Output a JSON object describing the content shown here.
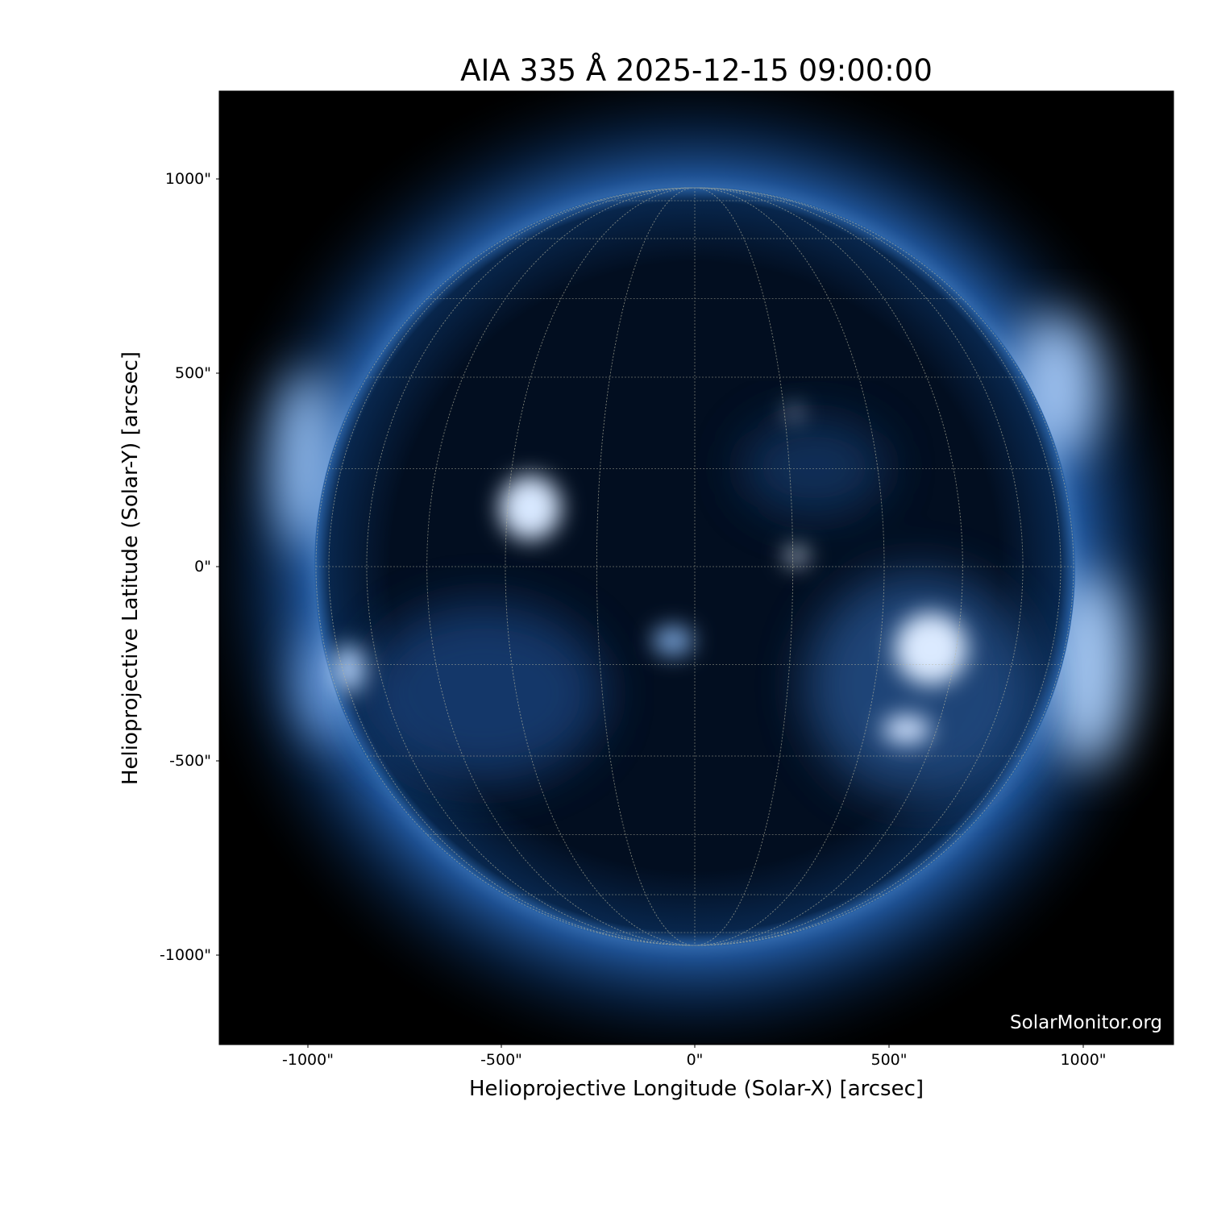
{
  "title": "AIA 335 Å 2025-12-15 09:00:00",
  "xlabel": "Helioprojective Longitude (Solar-X) [arcsec]",
  "ylabel": "Helioprojective Latitude (Solar-Y) [arcsec]",
  "x_ticks": [
    "-1000\"",
    "-500\"",
    "0\"",
    "500\"",
    "1000\""
  ],
  "y_ticks": [
    "1000\"",
    "500\"",
    "0\"",
    "-500\"",
    "-1000\""
  ],
  "watermark": "SolarMonitor.org",
  "colors": {
    "background": "#000000",
    "disk": "#02142c",
    "corona": "#3a78c0",
    "bright": "#e8f2ff"
  },
  "grid_spacing_deg": 15
}
